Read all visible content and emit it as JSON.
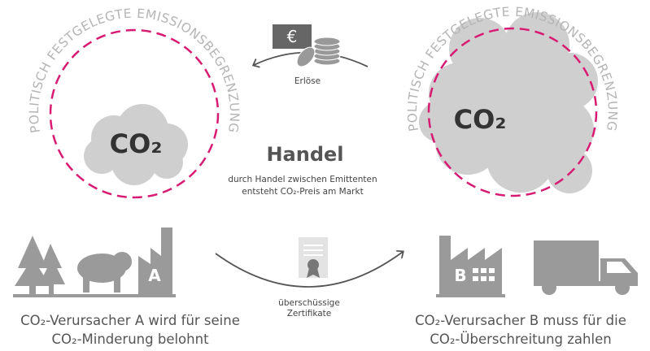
{
  "left_circle": {
    "arc_label": "POLITISCH FESTGELEGTE EMISSIONSBEGRENZUNG",
    "cloud_label": "CO₂"
  },
  "right_circle": {
    "arc_label": "POLITISCH FESTGELEGTE EMISSIONSBEGRENZUNG",
    "cloud_label": "CO₂"
  },
  "revenue": {
    "currency": "€",
    "label": "Erlöse"
  },
  "trade": {
    "title": "Handel",
    "lines": [
      "durch Handel zwischen Emittenten",
      "entsteht CO₂-Preis am Markt"
    ]
  },
  "certificates": {
    "lines": [
      "überschüssige",
      "Zertifikate"
    ]
  },
  "emitter_a": {
    "badge": "A",
    "caption": [
      "CO₂-Verursacher A wird für seine",
      "CO₂-Minderung belohnt"
    ]
  },
  "emitter_b": {
    "badge": "B",
    "caption": [
      "CO₂-Verursacher B muss für die",
      "CO₂-Überschreitung zahlen"
    ]
  }
}
